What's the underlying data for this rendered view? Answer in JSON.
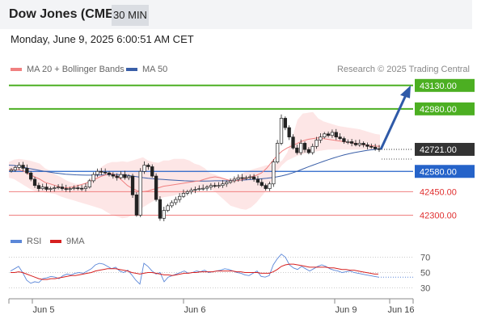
{
  "header": {
    "title": "Dow Jones (CME)",
    "timeframe": "30 MIN"
  },
  "date_line": "Monday, June 9, 2025 6:00:51 AM CET",
  "legend": {
    "bb_label": "MA 20 + Bollinger Bands",
    "ma50_label": "MA 50",
    "credit": "Research © 2025 Trading Central"
  },
  "rsi_legend": {
    "rsi_label": "RSI",
    "ma_label": "9MA"
  },
  "colors": {
    "resistance": "#4caf22",
    "support": "#2563c9",
    "minor_support": "#f08080",
    "current": "#333333",
    "bb_fill": "#fde2e2",
    "ma20": "#f08080",
    "ma50": "#3a5fa8",
    "arrow": "#2f5aa8",
    "rsi": "#5b87d8",
    "rsi_ma": "#d62020"
  },
  "chart_data": [
    {
      "type": "candlestick",
      "y_range": [
        42230,
        43160
      ],
      "x_ticks": [
        "Jun 5",
        "Jun 6",
        "Jun 9",
        "Jun 16"
      ],
      "levels": [
        {
          "value": 43130,
          "label": "43130.00",
          "kind": "resistance"
        },
        {
          "value": 42980,
          "label": "42980.00",
          "kind": "resistance"
        },
        {
          "value": 42721,
          "label": "42721.00",
          "kind": "current"
        },
        {
          "value": 42580,
          "label": "42580.00",
          "kind": "support"
        },
        {
          "value": 42450,
          "label": "42450.00",
          "kind": "minor_support"
        },
        {
          "value": 42300,
          "label": "42300.00",
          "kind": "minor_support"
        }
      ],
      "closes": [
        42590,
        42605,
        42620,
        42600,
        42570,
        42530,
        42490,
        42470,
        42480,
        42465,
        42470,
        42475,
        42480,
        42470,
        42465,
        42470,
        42475,
        42472,
        42470,
        42480,
        42520,
        42560,
        42580,
        42575,
        42570,
        42560,
        42550,
        42540,
        42560,
        42540,
        42550,
        42430,
        42300,
        42580,
        42620,
        42610,
        42550,
        42400,
        42280,
        42330,
        42360,
        42380,
        42400,
        42420,
        42440,
        42450,
        42460,
        42465,
        42470,
        42472,
        42480,
        42490,
        42485,
        42490,
        42500,
        42510,
        42520,
        42530,
        42540,
        42535,
        42540,
        42545,
        42530,
        42510,
        42490,
        42470,
        42500,
        42640,
        42760,
        42920,
        42860,
        42800,
        42730,
        42700,
        42760,
        42720,
        42700,
        42740,
        42780,
        42800,
        42820,
        42810,
        42830,
        42800,
        42790,
        42770,
        42770,
        42760,
        42750,
        42760,
        42750,
        42740,
        42735,
        42725,
        42721
      ],
      "bb_upper": [
        42640,
        42655,
        42660,
        42655,
        42650,
        42640,
        42630,
        42600,
        42585,
        42560,
        42545,
        42525,
        42510,
        42500,
        42500,
        42510,
        42540,
        42580,
        42610,
        42630,
        42640,
        42640,
        42645,
        42640,
        42650,
        42660,
        42670,
        42650,
        42640,
        42635,
        42650,
        42650,
        42660,
        42660,
        42660,
        42650,
        42630,
        42620,
        42600,
        42570,
        42560,
        42545,
        42530,
        42530,
        42540,
        42560,
        42580,
        42590,
        42600,
        42610,
        42620,
        42620,
        42630,
        42650,
        42700,
        42800,
        42910,
        42950,
        42955,
        42960,
        42920,
        42900,
        42890,
        42880,
        42870,
        42865,
        42860,
        42855,
        42850,
        42840,
        42830,
        42820,
        42815
      ],
      "bb_lower": [
        42540,
        42530,
        42510,
        42490,
        42470,
        42455,
        42450,
        42445,
        42440,
        42435,
        42420,
        42410,
        42400,
        42390,
        42380,
        42370,
        42360,
        42350,
        42340,
        42320,
        42300,
        42290,
        42280,
        42285,
        42300,
        42320,
        42350,
        42370,
        42390,
        42405,
        42415,
        42420,
        42425,
        42435,
        42440,
        42450,
        42460,
        42470,
        42475,
        42470,
        42450,
        42420,
        42390,
        42360,
        42350,
        42340,
        42335,
        42350,
        42380,
        42420,
        42460,
        42520,
        42580,
        42620,
        42650,
        42665,
        42680,
        42690,
        42700,
        42705,
        42710,
        42715,
        42720,
        42720,
        42720,
        42720,
        42720,
        42720,
        42720,
        42720,
        42720,
        42720,
        42720
      ],
      "ma20": [
        42590,
        42592,
        42590,
        42580,
        42560,
        42545,
        42530,
        42510,
        42500,
        42490,
        42480,
        42475,
        42478,
        42485,
        42495,
        42505,
        42520,
        42535,
        42550,
        42560,
        42565,
        42550,
        42520,
        42490,
        42470,
        42455,
        42450,
        42455,
        42465,
        42475,
        42485,
        42490,
        42495,
        42500,
        42505,
        42510,
        42515,
        42520,
        42530,
        42540,
        42545,
        42540,
        42530,
        42520,
        42520,
        42525,
        42535,
        42545,
        42555,
        42570,
        42600,
        42640,
        42680,
        42710,
        42730,
        42745,
        42760,
        42775,
        42785,
        42790,
        42795,
        42790,
        42785,
        42780,
        42775,
        42770,
        42765,
        42760,
        42755,
        42750,
        42745,
        42742,
        42740
      ],
      "ma50": [
        42620,
        42618,
        42612,
        42605,
        42598,
        42592,
        42586,
        42580,
        42575,
        42570,
        42566,
        42562,
        42560,
        42558,
        42557,
        42556,
        42556,
        42556,
        42557,
        42558,
        42560,
        42560,
        42558,
        42555,
        42550,
        42545,
        42540,
        42536,
        42533,
        42530,
        42528,
        42526,
        42524,
        42522,
        42520,
        42519,
        42518,
        42518,
        42518,
        42519,
        42520,
        42520,
        42520,
        42521,
        42522,
        42524,
        42526,
        42528,
        42530,
        42533,
        42536,
        42540,
        42545,
        42552,
        42560,
        42570,
        42582,
        42595,
        42608,
        42620,
        42632,
        42644,
        42655,
        42666,
        42676,
        42685,
        42693,
        42700,
        42706,
        42712,
        42717,
        42721,
        42725
      ]
    },
    {
      "type": "line",
      "title": "RSI",
      "y_ticks": [
        70,
        50,
        30
      ],
      "y_range": [
        20,
        80
      ],
      "series": [
        {
          "name": "RSI",
          "values": [
            52,
            55,
            58,
            50,
            40,
            36,
            38,
            37,
            42,
            43,
            45,
            44,
            42,
            46,
            48,
            47,
            49,
            50,
            49,
            52,
            55,
            60,
            62,
            61,
            58,
            55,
            57,
            52,
            50,
            53,
            47,
            40,
            35,
            62,
            58,
            52,
            48,
            50,
            38,
            44,
            46,
            48,
            50,
            52,
            49,
            50,
            52,
            51,
            53,
            50,
            51,
            52,
            53,
            55,
            54,
            52,
            50,
            49,
            47,
            46,
            49,
            52,
            45,
            44,
            46,
            60,
            68,
            74,
            70,
            60,
            56,
            54,
            58,
            55,
            52,
            55,
            58,
            60,
            58,
            55,
            53,
            52,
            50,
            51,
            52,
            50,
            49,
            48,
            47,
            46,
            45,
            44
          ]
        },
        {
          "name": "9MA",
          "values": [
            50,
            50,
            51,
            50,
            48,
            46,
            44,
            42,
            41,
            41,
            42,
            42,
            43,
            44,
            45,
            46,
            46,
            47,
            48,
            49,
            50,
            52,
            53,
            54,
            55,
            55,
            55,
            54,
            53,
            52,
            50,
            49,
            48,
            49,
            50,
            50,
            49,
            48,
            47,
            47,
            46,
            47,
            48,
            49,
            49,
            50,
            50,
            51,
            51,
            51,
            51,
            52,
            52,
            52,
            52,
            52,
            51,
            51,
            50,
            50,
            50,
            50,
            49,
            49,
            49,
            51,
            54,
            58,
            60,
            61,
            61,
            60,
            59,
            58,
            57,
            57,
            57,
            57,
            57,
            56,
            56,
            55,
            54,
            54,
            53,
            53,
            52,
            51,
            50,
            49,
            48,
            48
          ]
        }
      ]
    }
  ]
}
